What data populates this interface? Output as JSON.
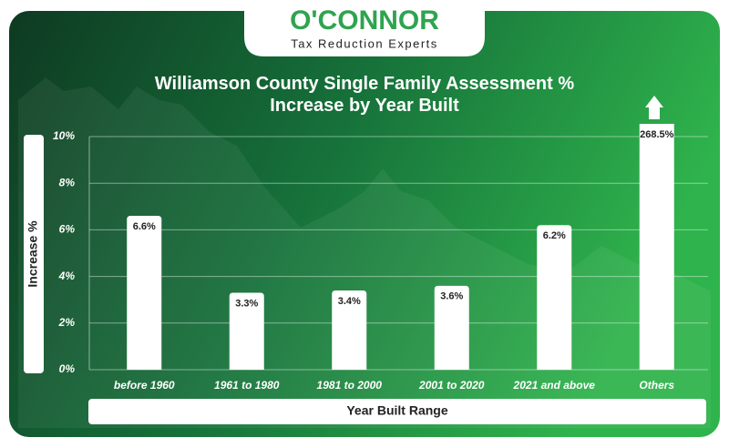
{
  "logo": {
    "name": "O'CONNOR",
    "tagline": "Tax Reduction Experts"
  },
  "chart_data": {
    "type": "bar",
    "title": "Williamson County Single Family Assessment % Increase by Year Built",
    "y_label": "Increase %",
    "x_label": "Year Built Range",
    "categories": [
      "before 1960",
      "1961 to 1980",
      "1981 to 2000",
      "2001 to 2020",
      "2021 and above",
      "Others"
    ],
    "values": [
      6.6,
      3.3,
      3.4,
      3.6,
      6.2,
      268.5
    ],
    "value_labels": [
      "6.6%",
      "3.3%",
      "3.4%",
      "3.6%",
      "6.2%",
      "268.5%"
    ],
    "color": "#ffffff",
    "ylim": [
      0,
      10
    ],
    "yticks": [
      {
        "value": 0,
        "label": "0%"
      },
      {
        "value": 2,
        "label": "2%"
      },
      {
        "value": 4,
        "label": "4%"
      },
      {
        "value": 6,
        "label": "6%"
      },
      {
        "value": 8,
        "label": "8%"
      },
      {
        "value": 10,
        "label": "10%"
      }
    ],
    "grid": true
  }
}
